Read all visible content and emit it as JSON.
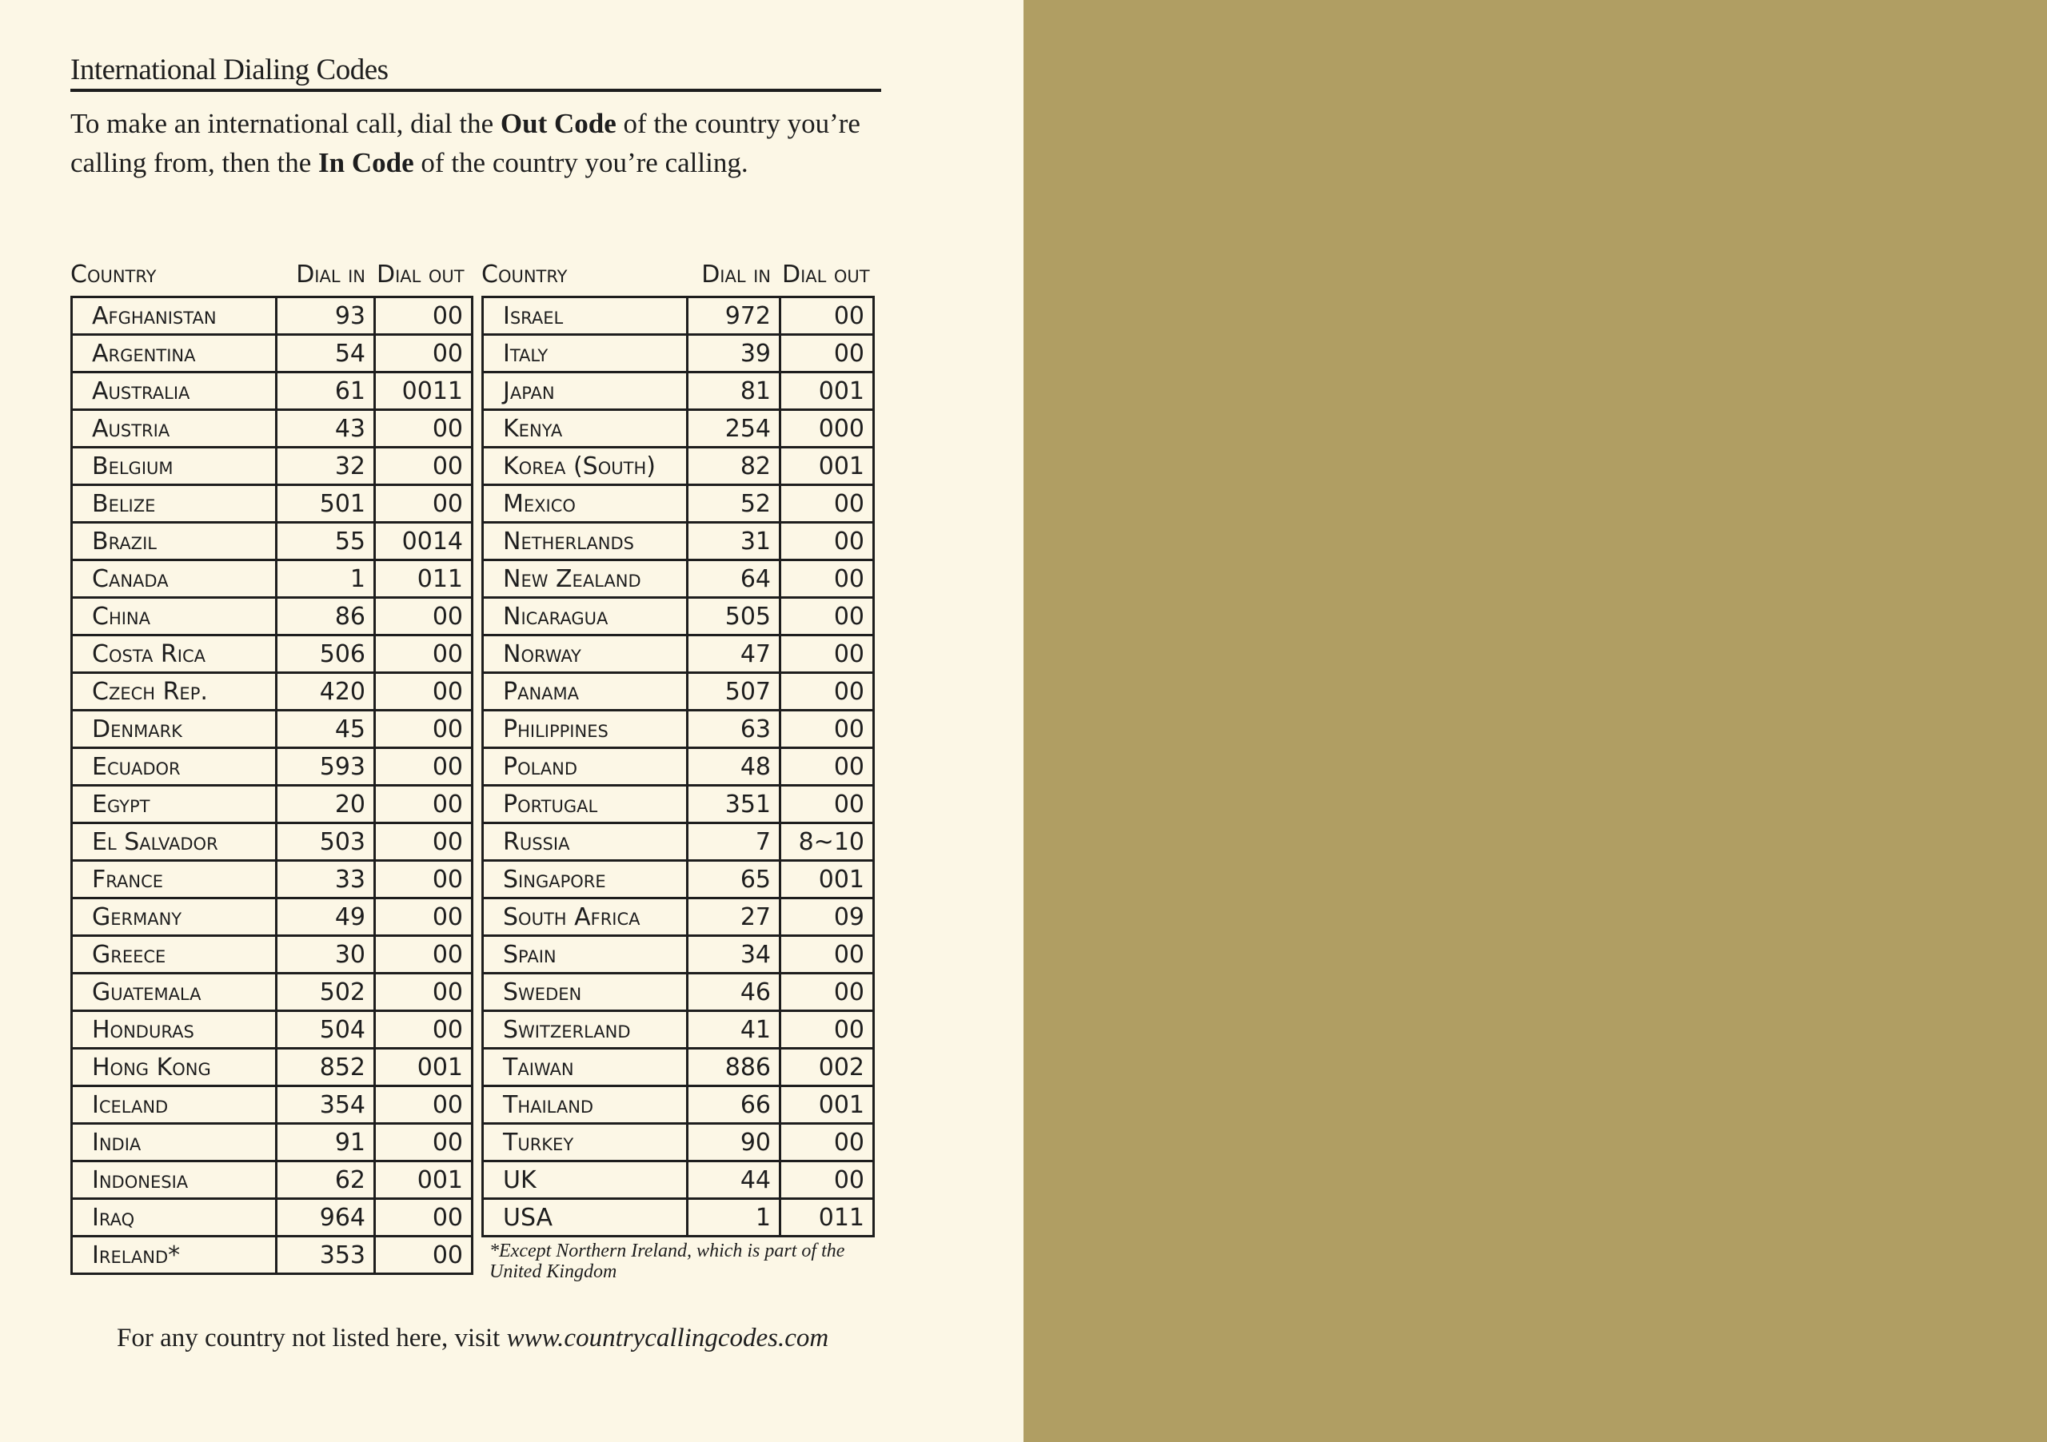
{
  "title": "International Dialing Codes",
  "intro": {
    "p1": "To make an international call, dial the ",
    "b1": "Out Code",
    "p2": " of the country you’re calling from, then the ",
    "b2": "In Code",
    "p3": " of the country you’re calling."
  },
  "headers": {
    "country": "Country",
    "dial_in": "Dial in",
    "dial_out": "Dial out"
  },
  "left_table": [
    [
      "Afghanistan",
      "93",
      "00"
    ],
    [
      "Argentina",
      "54",
      "00"
    ],
    [
      "Australia",
      "61",
      "0011"
    ],
    [
      "Austria",
      "43",
      "00"
    ],
    [
      "Belgium",
      "32",
      "00"
    ],
    [
      "Belize",
      "501",
      "00"
    ],
    [
      "Brazil",
      "55",
      "0014"
    ],
    [
      "Canada",
      "1",
      "011"
    ],
    [
      "China",
      "86",
      "00"
    ],
    [
      "Costa Rica",
      "506",
      "00"
    ],
    [
      "Czech Rep.",
      "420",
      "00"
    ],
    [
      "Denmark",
      "45",
      "00"
    ],
    [
      "Ecuador",
      "593",
      "00"
    ],
    [
      "Egypt",
      "20",
      "00"
    ],
    [
      "El Salvador",
      "503",
      "00"
    ],
    [
      "France",
      "33",
      "00"
    ],
    [
      "Germany",
      "49",
      "00"
    ],
    [
      "Greece",
      "30",
      "00"
    ],
    [
      "Guatemala",
      "502",
      "00"
    ],
    [
      "Honduras",
      "504",
      "00"
    ],
    [
      "Hong Kong",
      "852",
      "001"
    ],
    [
      "Iceland",
      "354",
      "00"
    ],
    [
      "India",
      "91",
      "00"
    ],
    [
      "Indonesia",
      "62",
      "001"
    ],
    [
      "Iraq",
      "964",
      "00"
    ],
    [
      "Ireland*",
      "353",
      "00"
    ]
  ],
  "right_table": [
    [
      "Israel",
      "972",
      "00"
    ],
    [
      "Italy",
      "39",
      "00"
    ],
    [
      "Japan",
      "81",
      "001"
    ],
    [
      "Kenya",
      "254",
      "000"
    ],
    [
      "Korea (South)",
      "82",
      "001"
    ],
    [
      "Mexico",
      "52",
      "00"
    ],
    [
      "Netherlands",
      "31",
      "00"
    ],
    [
      "New Zealand",
      "64",
      "00"
    ],
    [
      "Nicaragua",
      "505",
      "00"
    ],
    [
      "Norway",
      "47",
      "00"
    ],
    [
      "Panama",
      "507",
      "00"
    ],
    [
      "Philippines",
      "63",
      "00"
    ],
    [
      "Poland",
      "48",
      "00"
    ],
    [
      "Portugal",
      "351",
      "00"
    ],
    [
      "Russia",
      "7",
      "8~10"
    ],
    [
      "Singapore",
      "65",
      "001"
    ],
    [
      "South Africa",
      "27",
      "09"
    ],
    [
      "Spain",
      "34",
      "00"
    ],
    [
      "Sweden",
      "46",
      "00"
    ],
    [
      "Switzerland",
      "41",
      "00"
    ],
    [
      "Taiwan",
      "886",
      "002"
    ],
    [
      "Thailand",
      "66",
      "001"
    ],
    [
      "Turkey",
      "90",
      "00"
    ],
    [
      "UK",
      "44",
      "00"
    ],
    [
      "USA",
      "1",
      "011"
    ]
  ],
  "footnote": "*Except Northern Ireland, which is part of the United Kingdom",
  "footer": {
    "text": "For any country not listed here, visit ",
    "link": "www.countrycallingcodes.com"
  },
  "colors": {
    "page": "#fcf7e6",
    "panel": "#b09e63",
    "ink": "#1e1e1e"
  }
}
